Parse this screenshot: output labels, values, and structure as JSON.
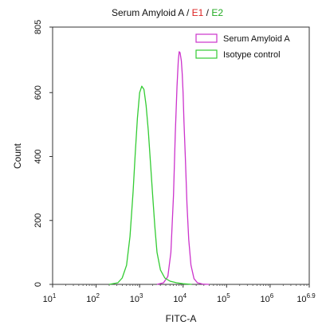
{
  "chart_data": {
    "type": "line",
    "title": {
      "prefix": "Serum Amyloid A / ",
      "e1": "E1",
      "sep": " / ",
      "e2": "E2"
    },
    "xlabel": "FITC-A",
    "ylabel": "Count",
    "x_scale": "log",
    "xlim_log10": [
      1,
      6.9
    ],
    "ylim": [
      0,
      805
    ],
    "x_ticks": [
      {
        "exp": 1,
        "label": "10",
        "sup": "1"
      },
      {
        "exp": 2,
        "label": "10",
        "sup": "2"
      },
      {
        "exp": 3,
        "label": "10",
        "sup": "3"
      },
      {
        "exp": 4,
        "label": "10",
        "sup": "4"
      },
      {
        "exp": 5,
        "label": "10",
        "sup": "5"
      },
      {
        "exp": 6,
        "label": "10",
        "sup": "6"
      },
      {
        "exp": 6.9,
        "label": "10",
        "sup": "6.9"
      }
    ],
    "y_ticks": [
      0,
      200,
      400,
      600,
      805
    ],
    "grid": false,
    "legend_position": "top-right",
    "series": [
      {
        "name": "Serum Amyloid A",
        "color": "#cc33cc",
        "log10_x": [
          3.4,
          3.55,
          3.65,
          3.72,
          3.78,
          3.82,
          3.86,
          3.89,
          3.91,
          3.93,
          3.96,
          3.98,
          4.0,
          4.02,
          4.05,
          4.09,
          4.13,
          4.18,
          4.25,
          4.33,
          4.45,
          4.6
        ],
        "count": [
          0,
          5,
          25,
          100,
          280,
          470,
          620,
          700,
          728,
          725,
          700,
          660,
          600,
          510,
          400,
          250,
          140,
          60,
          18,
          5,
          1,
          0
        ]
      },
      {
        "name": "Isotype control",
        "color": "#33cc33",
        "log10_x": [
          2.3,
          2.5,
          2.6,
          2.7,
          2.78,
          2.85,
          2.9,
          2.95,
          3.0,
          3.05,
          3.1,
          3.15,
          3.2,
          3.25,
          3.3,
          3.35,
          3.4,
          3.48,
          3.58,
          3.7,
          3.85,
          4.0,
          4.2
        ],
        "count": [
          0,
          5,
          20,
          60,
          150,
          290,
          410,
          520,
          600,
          620,
          610,
          560,
          480,
          380,
          280,
          180,
          100,
          45,
          20,
          10,
          5,
          2,
          0
        ]
      }
    ]
  }
}
